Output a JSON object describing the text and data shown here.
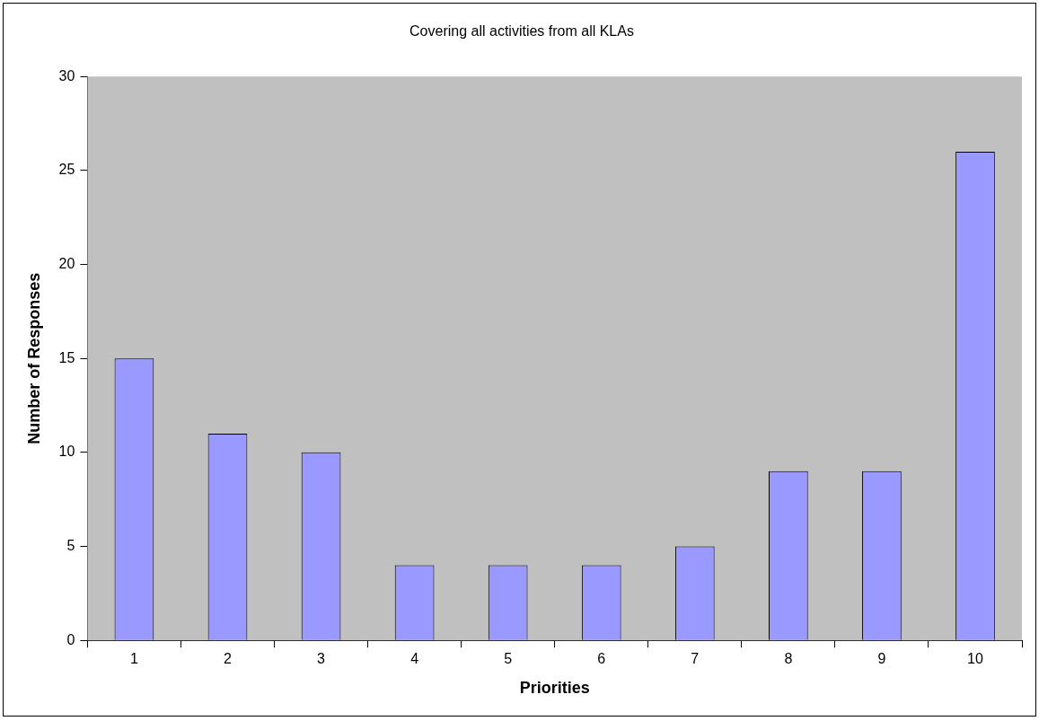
{
  "chart_data": {
    "type": "bar",
    "title": "Covering all activities from all KLAs",
    "xlabel": "Priorities",
    "ylabel": "Number of Responses",
    "categories": [
      "1",
      "2",
      "3",
      "4",
      "5",
      "6",
      "7",
      "8",
      "9",
      "10"
    ],
    "values": [
      15,
      11,
      10,
      4,
      4,
      4,
      5,
      9,
      9,
      26
    ],
    "color": "#9999ff",
    "ylim": [
      0,
      30
    ],
    "yticks": [
      0,
      5,
      10,
      15,
      20,
      25,
      30
    ],
    "grid": false,
    "legend": false
  }
}
